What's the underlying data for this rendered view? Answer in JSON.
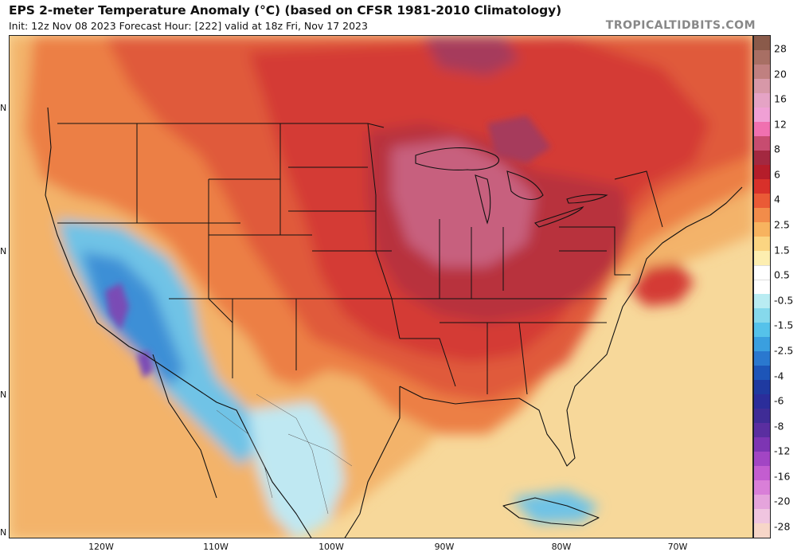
{
  "header": {
    "title": "EPS 2-meter Temperature Anomaly (°C) (based on CFSR 1981-2010 Climatology)",
    "subtitle": "Init: 12z Nov 08 2023   Forecast Hour: [222]   valid at 18z Fri, Nov 17 2023",
    "brand": "TROPICALTIDBITS.COM"
  },
  "map": {
    "lon_labels": [
      "120W",
      "110W",
      "100W",
      "90W",
      "80W",
      "70W"
    ],
    "lat_labels": [
      "N",
      "N",
      "N",
      "N"
    ],
    "colors": {
      "ocean_base": "#f7d89a",
      "warm_light": "#f3b36b",
      "warm": "#ec7f45",
      "warm_strong": "#e05a3a",
      "hot": "#d43a35",
      "hot_strong": "#b8323e",
      "very_hot": "#a63a5b",
      "pink": "#c7607e",
      "cold_light": "#bfe8f2",
      "cold": "#6fc3e6",
      "cold_strong": "#3e8fd6",
      "very_cold": "#7a4bb5"
    }
  },
  "colorbar": {
    "labels": [
      "28",
      "20",
      "16",
      "12",
      "8",
      "6",
      "4",
      "2.5",
      "1.5",
      "0.5",
      "-0.5",
      "-1.5",
      "-2.5",
      "-4",
      "-6",
      "-8",
      "-12",
      "-16",
      "-20",
      "-28"
    ],
    "colors": [
      "#8a5a4a",
      "#a86f64",
      "#c08080",
      "#d798a8",
      "#e5a3c5",
      "#f0a0d5",
      "#f070b0",
      "#c74c70",
      "#a32840",
      "#b51d2a",
      "#d8302a",
      "#ea5a36",
      "#f28c4a",
      "#f7b35f",
      "#fbd582",
      "#fdeeb0",
      "#ffffff",
      "#ffffff",
      "#b9ecf2",
      "#86d9ec",
      "#55c2ea",
      "#3a9fdf",
      "#2a78cf",
      "#1d55b8",
      "#1f3aa0",
      "#2b2d9a",
      "#3f2c96",
      "#5a2ea0",
      "#7d35b3",
      "#a245c4",
      "#c35dd0",
      "#d97fd8",
      "#e5a4dc",
      "#f0c5e0",
      "#f7d6c8"
    ]
  }
}
